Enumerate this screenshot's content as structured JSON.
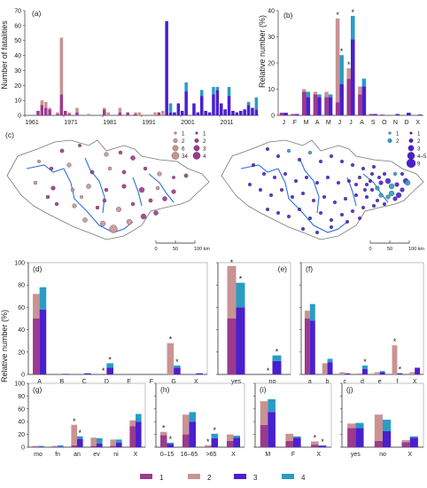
{
  "colors": {
    "c1": "#9b3a8e",
    "c2": "#c99393",
    "c3": "#4a1fcf",
    "c4": "#2a9cc4",
    "river": "#2d6fe0",
    "border": "#777777"
  },
  "y_axis_a": "Number of fatalities",
  "y_axis_rel": "Relative number (%)",
  "legend": [
    {
      "label": "1",
      "color": "#9b3a8e"
    },
    {
      "label": "2",
      "color": "#c99393"
    },
    {
      "label": "3",
      "color": "#4a1fcf"
    },
    {
      "label": "4",
      "color": "#2a9cc4"
    }
  ],
  "map": {
    "panel_label": "(c)",
    "scale_labels": [
      "0",
      "50",
      "100 km"
    ],
    "left_legend_cols": [
      {
        "title": "",
        "items": [
          {
            "label": "1",
            "color": "#c99393"
          },
          {
            "label": "2",
            "color": "#c99393"
          },
          {
            "label": "6",
            "color": "#c99393"
          },
          {
            "label": "34",
            "color": "#c99393"
          }
        ]
      },
      {
        "title": "",
        "items": [
          {
            "label": "1",
            "color": "#9b3a8e"
          },
          {
            "label": "2",
            "color": "#9b3a8e"
          },
          {
            "label": "3",
            "color": "#9b3a8e"
          },
          {
            "label": "4",
            "color": "#9b3a8e"
          }
        ]
      }
    ],
    "right_legend_cols": [
      {
        "items": [
          {
            "label": "1",
            "color": "#2a9cc4"
          },
          {
            "label": "2",
            "color": "#2a9cc4"
          }
        ]
      },
      {
        "items": [
          {
            "label": "1",
            "color": "#4a1fcf"
          },
          {
            "label": "2",
            "color": "#4a1fcf"
          },
          {
            "label": "3",
            "color": "#4a1fcf"
          },
          {
            "label": "4–5",
            "color": "#4a1fcf"
          },
          {
            "label": "9",
            "color": "#4a1fcf"
          }
        ]
      }
    ]
  },
  "chart_data": [
    {
      "id": "a",
      "label": "(a)",
      "type": "bar",
      "ylabel": "Number of fatalities",
      "ylim": [
        0,
        70
      ],
      "yticks": [
        0,
        10,
        20,
        30,
        40,
        50,
        60,
        70
      ],
      "xticks": [
        "1961",
        "1971",
        "1981",
        "1991",
        "2001",
        "2011"
      ],
      "bars": [
        {
          "year": 1964,
          "v": [
            3,
            0,
            0,
            0
          ]
        },
        {
          "year": 1965,
          "v": [
            7,
            3,
            0,
            0
          ]
        },
        {
          "year": 1966,
          "v": [
            5,
            4,
            0,
            0
          ]
        },
        {
          "year": 1967,
          "v": [
            4,
            1,
            0,
            0
          ]
        },
        {
          "year": 1969,
          "v": [
            1,
            1,
            0,
            0
          ]
        },
        {
          "year": 1970,
          "v": [
            14,
            38,
            0,
            0
          ]
        },
        {
          "year": 1971,
          "v": [
            3,
            0,
            0,
            0
          ]
        },
        {
          "year": 1972,
          "v": [
            1,
            1,
            0,
            0
          ]
        },
        {
          "year": 1974,
          "v": [
            2,
            3,
            0,
            0
          ]
        },
        {
          "year": 1977,
          "v": [
            0,
            1,
            0,
            0
          ]
        },
        {
          "year": 1981,
          "v": [
            4,
            1,
            0,
            0
          ]
        },
        {
          "year": 1982,
          "v": [
            0,
            2,
            0,
            0
          ]
        },
        {
          "year": 1985,
          "v": [
            2,
            3,
            0,
            0
          ]
        },
        {
          "year": 1987,
          "v": [
            2,
            0,
            0,
            0
          ]
        },
        {
          "year": 1989,
          "v": [
            1,
            1,
            0,
            0
          ]
        },
        {
          "year": 1990,
          "v": [
            0,
            2,
            0,
            0
          ]
        },
        {
          "year": 1994,
          "v": [
            0,
            2,
            0,
            0
          ]
        },
        {
          "year": 1995,
          "v": [
            2,
            0,
            0,
            0
          ]
        },
        {
          "year": 1996,
          "v": [
            0,
            3,
            0,
            0
          ]
        },
        {
          "year": 1997,
          "v": [
            0,
            0,
            63,
            0
          ]
        },
        {
          "year": 1998,
          "v": [
            0,
            0,
            2,
            6
          ]
        },
        {
          "year": 1999,
          "v": [
            0,
            0,
            2,
            0
          ]
        },
        {
          "year": 2000,
          "v": [
            0,
            0,
            8,
            0
          ]
        },
        {
          "year": 2001,
          "v": [
            0,
            0,
            3,
            0
          ]
        },
        {
          "year": 2002,
          "v": [
            0,
            0,
            16,
            6
          ]
        },
        {
          "year": 2004,
          "v": [
            0,
            0,
            8,
            0
          ]
        },
        {
          "year": 2005,
          "v": [
            0,
            0,
            2,
            0
          ]
        },
        {
          "year": 2006,
          "v": [
            0,
            0,
            13,
            4
          ]
        },
        {
          "year": 2007,
          "v": [
            0,
            0,
            3,
            0
          ]
        },
        {
          "year": 2008,
          "v": [
            0,
            0,
            2,
            0
          ]
        },
        {
          "year": 2009,
          "v": [
            0,
            0,
            14,
            5
          ]
        },
        {
          "year": 2010,
          "v": [
            0,
            0,
            17,
            2
          ]
        },
        {
          "year": 2011,
          "v": [
            0,
            0,
            8,
            0
          ]
        },
        {
          "year": 2012,
          "v": [
            0,
            0,
            4,
            0
          ]
        },
        {
          "year": 2013,
          "v": [
            0,
            0,
            13,
            6
          ]
        },
        {
          "year": 2014,
          "v": [
            0,
            0,
            3,
            0
          ]
        },
        {
          "year": 2015,
          "v": [
            0,
            0,
            2,
            0
          ]
        },
        {
          "year": 2016,
          "v": [
            0,
            0,
            3,
            0
          ]
        },
        {
          "year": 2017,
          "v": [
            0,
            0,
            4,
            0
          ]
        },
        {
          "year": 2018,
          "v": [
            0,
            0,
            7,
            2
          ]
        },
        {
          "year": 2019,
          "v": [
            0,
            0,
            5,
            0
          ]
        },
        {
          "year": 2020,
          "v": [
            0,
            0,
            4,
            8
          ]
        }
      ]
    },
    {
      "id": "b",
      "label": "(b)",
      "type": "bar",
      "ylabel": "Relative number (%)",
      "ylim": [
        0,
        40
      ],
      "yticks": [
        0,
        10,
        20,
        30,
        40
      ],
      "categories": [
        "J",
        "F",
        "M",
        "A",
        "M",
        "J",
        "J",
        "A",
        "S",
        "O",
        "N",
        "D",
        "X"
      ],
      "groups": [
        {
          "c": "J",
          "l": [
            1,
            0
          ],
          "r": [
            1,
            0
          ],
          "star": []
        },
        {
          "c": "F",
          "l": [
            0.5,
            0
          ],
          "r": [
            0.5,
            0
          ],
          "star": []
        },
        {
          "c": "M",
          "l": [
            9,
            1
          ],
          "r": [
            7,
            2
          ],
          "star": []
        },
        {
          "c": "A",
          "l": [
            8,
            1
          ],
          "r": [
            7,
            1
          ],
          "star": []
        },
        {
          "c": "M",
          "l": [
            7,
            2
          ],
          "r": [
            7,
            1
          ],
          "star": []
        },
        {
          "c": "J",
          "l": [
            5,
            32
          ],
          "r": [
            12,
            11
          ],
          "star": [
            "l",
            "r"
          ]
        },
        {
          "c": "J",
          "l": [
            14,
            4
          ],
          "r": [
            29,
            9
          ],
          "star": [
            "l",
            "r"
          ]
        },
        {
          "c": "A",
          "l": [
            8,
            3
          ],
          "r": [
            11,
            3
          ],
          "star": []
        },
        {
          "c": "S",
          "l": [
            0.5,
            0
          ],
          "r": [
            0.5,
            0
          ],
          "star": []
        },
        {
          "c": "O",
          "l": [
            0.3,
            0
          ],
          "r": [
            0,
            0
          ],
          "star": []
        },
        {
          "c": "N",
          "l": [
            0,
            0
          ],
          "r": [
            0.5,
            0
          ],
          "star": []
        },
        {
          "c": "D",
          "l": [
            0,
            0
          ],
          "r": [
            1,
            0
          ],
          "star": []
        },
        {
          "c": "X",
          "l": [
            0,
            0
          ],
          "r": [
            0.3,
            0
          ],
          "star": []
        }
      ]
    },
    {
      "id": "d",
      "label": "(d)",
      "type": "bar",
      "ylim": [
        0,
        100
      ],
      "yticks": [
        0,
        20,
        40,
        60,
        80,
        100
      ],
      "categories": [
        "A",
        "B",
        "C",
        "D",
        "E",
        "F",
        "G",
        "X"
      ],
      "groups": [
        {
          "c": "A",
          "l": [
            50,
            22
          ],
          "r": [
            58,
            20
          ],
          "star": []
        },
        {
          "c": "B",
          "l": [
            0,
            0
          ],
          "r": [
            0.5,
            0
          ],
          "star": []
        },
        {
          "c": "C",
          "l": [
            0,
            0
          ],
          "r": [
            1,
            0
          ],
          "star": []
        },
        {
          "c": "D",
          "l": [
            0,
            0
          ],
          "r": [
            6,
            4
          ],
          "star": [
            "l",
            "r"
          ]
        },
        {
          "c": "E",
          "l": [
            0,
            0
          ],
          "r": [
            0,
            0
          ],
          "star": []
        },
        {
          "c": "F",
          "l": [
            0,
            0
          ],
          "r": [
            0,
            0
          ],
          "star": []
        },
        {
          "c": "G",
          "l": [
            0,
            28
          ],
          "r": [
            6,
            2
          ],
          "star": [
            "l",
            "r"
          ]
        },
        {
          "c": "X",
          "l": [
            0,
            0
          ],
          "r": [
            1,
            0
          ],
          "star": []
        }
      ]
    },
    {
      "id": "e",
      "label": "(e)",
      "type": "bar",
      "ylim": [
        0,
        100
      ],
      "yticks": [
        0,
        20,
        40,
        60,
        80,
        100
      ],
      "categories": [
        "yes",
        "no"
      ],
      "groups": [
        {
          "c": "yes",
          "l": [
            50,
            47
          ],
          "r": [
            60,
            22
          ],
          "star": [
            "l",
            "r"
          ]
        },
        {
          "c": "no",
          "l": [
            0,
            0
          ],
          "r": [
            12,
            5
          ],
          "star": [
            "l",
            "r"
          ]
        }
      ]
    },
    {
      "id": "f",
      "label": "(f)",
      "type": "bar",
      "ylim": [
        0,
        100
      ],
      "yticks": [
        0,
        20,
        40,
        60,
        80,
        100
      ],
      "categories": [
        "a",
        "b",
        "c",
        "d",
        "e",
        "f",
        "X"
      ],
      "groups": [
        {
          "c": "a",
          "l": [
            50,
            7
          ],
          "r": [
            48,
            15
          ],
          "star": []
        },
        {
          "c": "b",
          "l": [
            0,
            10
          ],
          "r": [
            11,
            3
          ],
          "star": []
        },
        {
          "c": "c",
          "l": [
            0,
            2
          ],
          "r": [
            1,
            0
          ],
          "star": []
        },
        {
          "c": "d",
          "l": [
            0,
            1
          ],
          "r": [
            5,
            3
          ],
          "star": [
            "r"
          ]
        },
        {
          "c": "e",
          "l": [
            0,
            2
          ],
          "r": [
            2,
            1
          ],
          "star": []
        },
        {
          "c": "f",
          "l": [
            0,
            26
          ],
          "r": [
            1,
            0
          ],
          "star": [
            "l",
            "r"
          ]
        },
        {
          "c": "X",
          "l": [
            0,
            2
          ],
          "r": [
            6,
            0
          ],
          "star": []
        }
      ]
    },
    {
      "id": "g",
      "label": "(g)",
      "type": "bar",
      "ylim": [
        0,
        100
      ],
      "yticks": [
        0,
        20,
        40,
        60,
        80,
        100
      ],
      "categories": [
        "mo",
        "fn",
        "an",
        "ev",
        "ni",
        "X"
      ],
      "groups": [
        {
          "c": "mo",
          "l": [
            1,
            1
          ],
          "r": [
            1,
            1
          ],
          "star": []
        },
        {
          "c": "fn",
          "l": [
            1,
            1
          ],
          "r": [
            1,
            2
          ],
          "star": []
        },
        {
          "c": "an",
          "l": [
            3,
            32
          ],
          "r": [
            13,
            4
          ],
          "star": [
            "l",
            "r"
          ]
        },
        {
          "c": "ev",
          "l": [
            2,
            13
          ],
          "r": [
            6,
            8
          ],
          "star": []
        },
        {
          "c": "ni",
          "l": [
            2,
            10
          ],
          "r": [
            7,
            5
          ],
          "star": []
        },
        {
          "c": "X",
          "l": [
            33,
            9
          ],
          "r": [
            40,
            12
          ],
          "star": []
        }
      ]
    },
    {
      "id": "h",
      "label": "(h)",
      "type": "bar",
      "ylim": [
        0,
        100
      ],
      "yticks": [
        0,
        20,
        40,
        60,
        80,
        100
      ],
      "categories": [
        "0–15",
        "16–65",
        ">65",
        "X"
      ],
      "groups": [
        {
          "c": "0–15",
          "l": [
            19,
            5
          ],
          "r": [
            5,
            2
          ],
          "star": [
            "l",
            "r"
          ]
        },
        {
          "c": "16–65",
          "l": [
            20,
            31
          ],
          "r": [
            40,
            15
          ],
          "star": []
        },
        {
          "c": ">65",
          "l": [
            1,
            2
          ],
          "r": [
            14,
            7
          ],
          "star": [
            "l",
            "r"
          ]
        },
        {
          "c": "X",
          "l": [
            10,
            10
          ],
          "r": [
            15,
            3
          ],
          "star": []
        }
      ]
    },
    {
      "id": "i",
      "label": "(i)",
      "type": "bar",
      "ylim": [
        0,
        100
      ],
      "yticks": [
        0,
        20,
        40,
        60,
        80,
        100
      ],
      "categories": [
        "M",
        "F",
        "X"
      ],
      "groups": [
        {
          "c": "M",
          "l": [
            35,
            37
          ],
          "r": [
            55,
            20
          ],
          "star": []
        },
        {
          "c": "F",
          "l": [
            10,
            11
          ],
          "r": [
            15,
            2
          ],
          "star": []
        },
        {
          "c": "X",
          "l": [
            4,
            5
          ],
          "r": [
            2,
            1
          ],
          "star": [
            "l",
            "r"
          ]
        }
      ]
    },
    {
      "id": "j",
      "label": "(j)",
      "type": "bar",
      "ylim": [
        0,
        100
      ],
      "yticks": [
        0,
        20,
        40,
        60,
        80,
        100
      ],
      "categories": [
        "yes",
        "no",
        "X"
      ],
      "groups": [
        {
          "c": "yes",
          "l": [
            30,
            7
          ],
          "r": [
            30,
            8
          ],
          "star": []
        },
        {
          "c": "no",
          "l": [
            10,
            41
          ],
          "r": [
            25,
            18
          ],
          "star": []
        },
        {
          "c": "X",
          "l": [
            8,
            3
          ],
          "r": [
            15,
            2
          ],
          "star": []
        }
      ]
    }
  ]
}
